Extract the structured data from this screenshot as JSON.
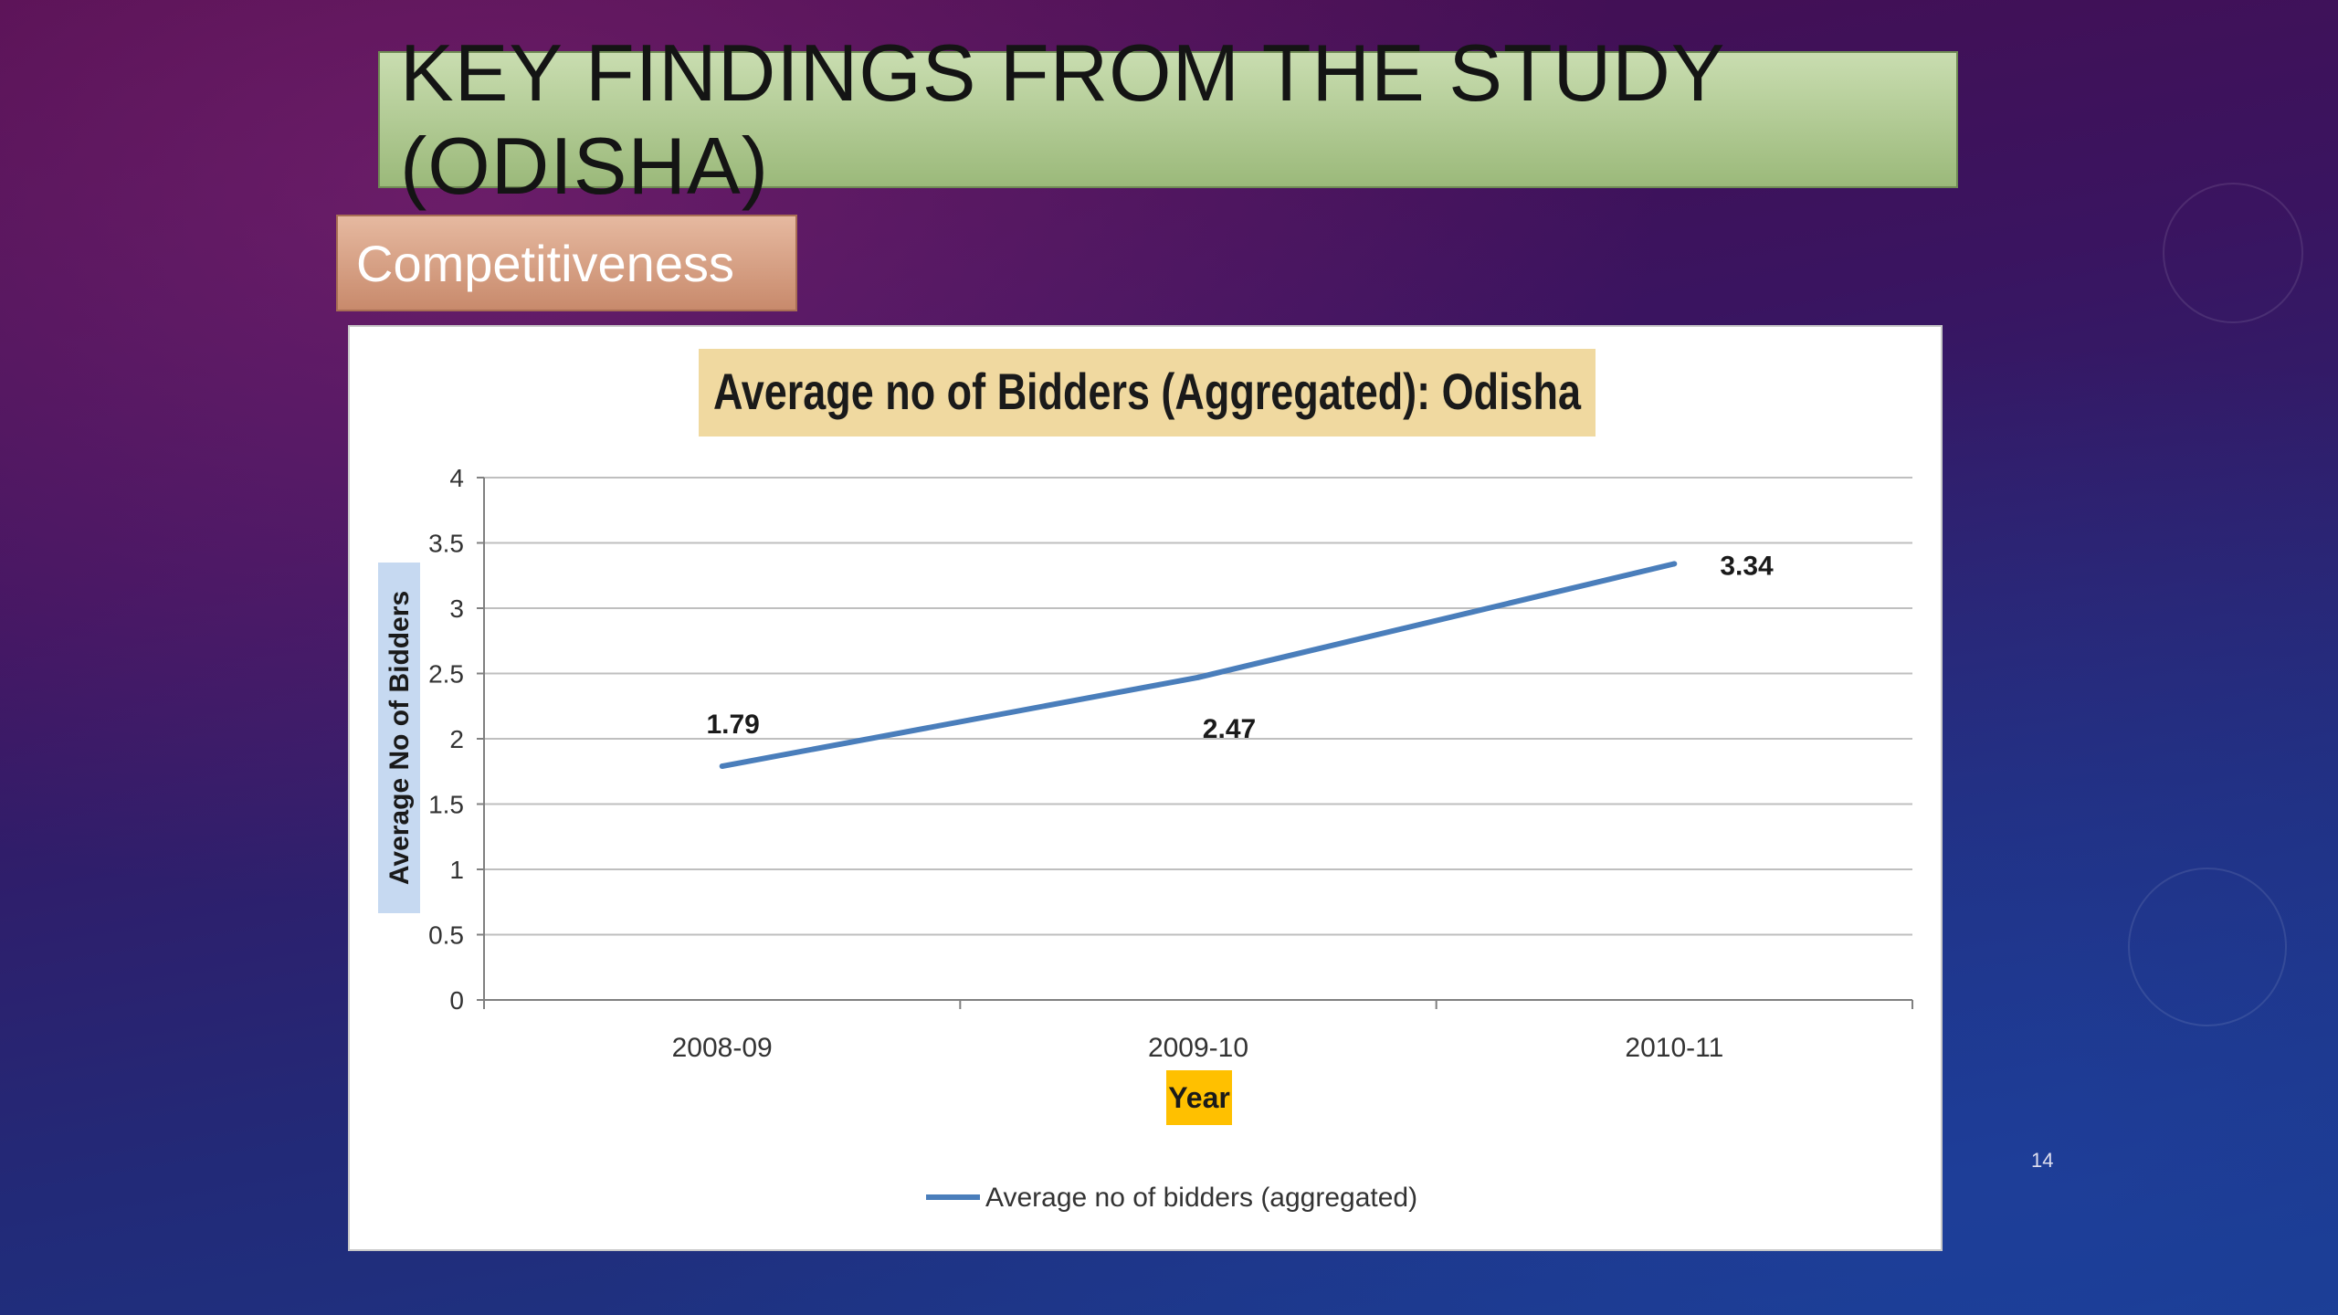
{
  "slide": {
    "title": "KEY FINDINGS FROM THE STUDY (ODISHA)",
    "subtitle": "Competitiveness",
    "page_number": "14"
  },
  "colors": {
    "title_bg": "#9bb97a",
    "subtitle_bg": "#c88a6c",
    "line": "#4a7ebb",
    "chart_title_bg": "#f0d9a0",
    "xlabel_bg": "#ffc000",
    "ylabel_bg": "#c6d9f1"
  },
  "chart_data": {
    "type": "line",
    "title": "Average no of Bidders (Aggregated): Odisha",
    "xlabel": "Year",
    "ylabel": "Average No of Bidders",
    "categories": [
      "2008-09",
      "2009-10",
      "2010-11"
    ],
    "series": [
      {
        "name": "Average no of bidders (aggregated)",
        "values": [
          1.79,
          2.47,
          3.34
        ],
        "labels": [
          "1.79",
          "2.47",
          "3.34"
        ]
      }
    ],
    "ylim": [
      0,
      4
    ],
    "yticks": [
      "0",
      "0.5",
      "1",
      "1.5",
      "2",
      "2.5",
      "3",
      "3.5",
      "4"
    ],
    "grid": true,
    "legend": "bottom"
  }
}
